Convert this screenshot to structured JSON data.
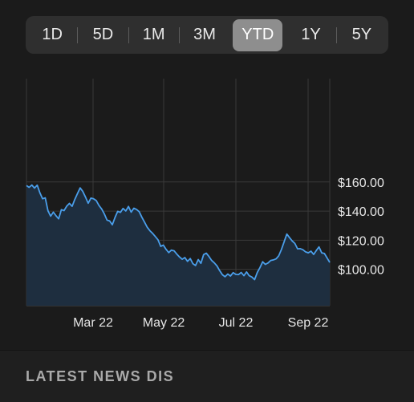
{
  "range_selector": {
    "options": [
      "1D",
      "5D",
      "1M",
      "3M",
      "YTD",
      "1Y",
      "5Y"
    ],
    "selected": "YTD"
  },
  "chart_data": {
    "type": "area",
    "x_ticks": [
      "Mar 22",
      "May 22",
      "Jul 22",
      "Sep 22"
    ],
    "y_ticks": [
      "$160.00",
      "$140.00",
      "$120.00",
      "$100.00"
    ],
    "ylim": [
      75,
      231
    ],
    "x_domain": [
      "Jan 3",
      "Sep 29"
    ],
    "grid": true,
    "line_color": "#4a9eea",
    "fill_color": "#1e2e3f",
    "series": [
      {
        "values": [
          157.5,
          156.3,
          157.9,
          155.8,
          157.8,
          152.6,
          148.5,
          149.1,
          140.2,
          136.5,
          139.3,
          136.8,
          134.7,
          141.0,
          140.3,
          143.4,
          145.3,
          143.3,
          148.0,
          152.1,
          155.9,
          153.5,
          149.6,
          145.4,
          148.9,
          148.4,
          147.2,
          143.9,
          141.5,
          138.1,
          133.8,
          133.2,
          130.6,
          135.7,
          139.8,
          139.1,
          141.8,
          140.1,
          143.2,
          139.3,
          142.0,
          141.1,
          139.6,
          135.8,
          132.4,
          128.9,
          126.5,
          124.7,
          122.5,
          120.3,
          115.8,
          116.6,
          113.8,
          111.5,
          113.2,
          112.7,
          110.5,
          108.5,
          106.9,
          108.1,
          105.5,
          107.4,
          103.9,
          102.6,
          106.7,
          104.1,
          110.1,
          111.1,
          108.8,
          106.1,
          104.4,
          102.3,
          99.1,
          96.3,
          94.9,
          96.8,
          95.4,
          97.7,
          96.5,
          96.4,
          97.8,
          95.6,
          98.2,
          95.6,
          94.7,
          92.9,
          97.8,
          101.2,
          105.2,
          103.4,
          104.4,
          106.1,
          106.5,
          107.2,
          109.3,
          113.7,
          118.9,
          124.2,
          121.8,
          119.5,
          117.8,
          114.1,
          114.2,
          113.5,
          112.0,
          111.3,
          112.5,
          110.2,
          113.0,
          115.4,
          111.3,
          110.9,
          107.8,
          104.7
        ],
        "color": "#4a9eea"
      }
    ]
  },
  "news": {
    "title": "LATEST NEWS DIS"
  }
}
